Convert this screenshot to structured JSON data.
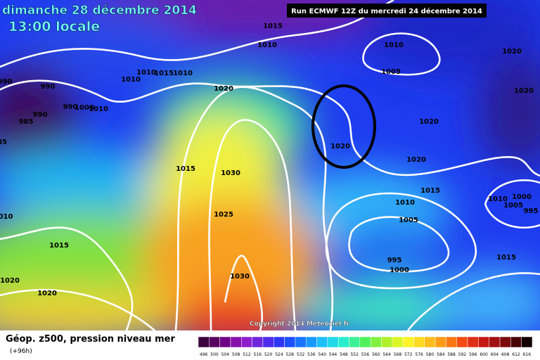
{
  "header": {
    "date": "dimanche 28 décembre 2014",
    "time": "13:00 locale",
    "run": "Run ECMWF 12Z du mercredi 24 décembre 2014"
  },
  "isobar_labels": [
    "1015",
    "1010",
    "1010",
    "1005",
    "1020",
    "1020",
    "990",
    "990",
    "1010",
    "1015",
    "1010",
    "1010",
    "985",
    "990",
    "990",
    "1000",
    "1010",
    "1020",
    "1020",
    "1020",
    "1020",
    "1015",
    "1030",
    "1015",
    "1010",
    "1010",
    "1000",
    "1005",
    "995",
    "1025",
    "1005",
    "1015",
    "1015",
    "995",
    "1000",
    "1030",
    "1020",
    "1020",
    "85",
    "010"
  ],
  "copyright": "Copyright 2014 Meteociel.fr",
  "legend": {
    "title": "Géop. z500, pression niveau mer",
    "forecast": "(+96h)",
    "scale": [
      "496",
      "500",
      "504",
      "508",
      "512",
      "516",
      "520",
      "524",
      "528",
      "532",
      "536",
      "540",
      "544",
      "548",
      "552",
      "556",
      "560",
      "564",
      "568",
      "572",
      "576",
      "580",
      "584",
      "588",
      "592",
      "596",
      "600",
      "604",
      "608",
      "612",
      "616"
    ]
  }
}
